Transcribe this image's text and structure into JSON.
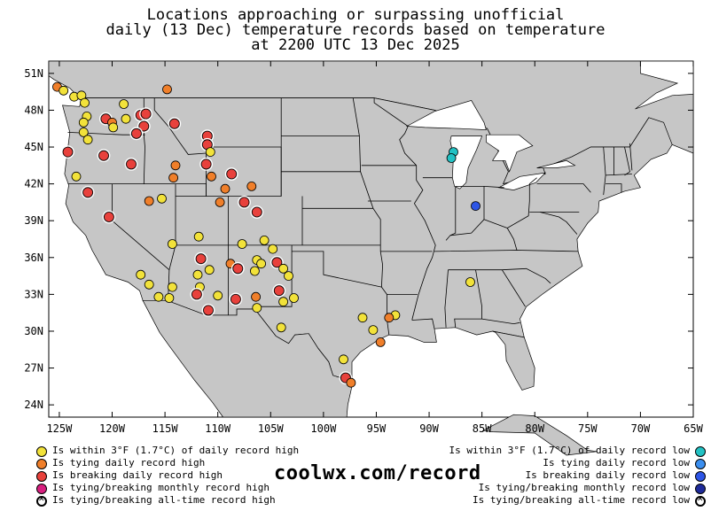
{
  "header": {
    "title_line1": "Locations approaching or surpassing unofficial",
    "title_line2": "daily (13 Dec) temperature records based on temperature",
    "title_line3": "at 2200 UTC 13 Dec 2025"
  },
  "map": {
    "lon_range": [
      -126,
      -65
    ],
    "lat_range": [
      23,
      52
    ],
    "lat_ticks": [
      "51N",
      "48N",
      "45N",
      "42N",
      "39N",
      "36N",
      "33N",
      "30N",
      "27N",
      "24N"
    ],
    "lon_ticks": [
      "125W",
      "120W",
      "115W",
      "110W",
      "105W",
      "100W",
      "95W",
      "90W",
      "85W",
      "80W",
      "75W",
      "70W",
      "65W"
    ],
    "colors": {
      "land": "#c6c6c6",
      "water": "#ffffff",
      "within_high": "#f2e23a",
      "tying_high": "#f07f2a",
      "breaking_high": "#e8413c",
      "monthly_high": "#d81f7f",
      "within_low": "#22c2c4",
      "tying_low": "#3b8ff0",
      "breaking_low": "#2d55e6"
    },
    "stations": [
      {
        "lon": -125.2,
        "lat": 49.9,
        "type": "tying_high"
      },
      {
        "lon": -124.6,
        "lat": 49.6,
        "type": "within_high"
      },
      {
        "lon": -123.6,
        "lat": 49.1,
        "type": "within_high"
      },
      {
        "lon": -122.9,
        "lat": 49.2,
        "type": "within_high"
      },
      {
        "lon": -114.8,
        "lat": 49.7,
        "type": "tying_high"
      },
      {
        "lon": -122.6,
        "lat": 48.6,
        "type": "within_high"
      },
      {
        "lon": -122.4,
        "lat": 47.5,
        "type": "within_high"
      },
      {
        "lon": -122.7,
        "lat": 47.0,
        "type": "within_high"
      },
      {
        "lon": -120.6,
        "lat": 47.3,
        "type": "breaking_high"
      },
      {
        "lon": -120.0,
        "lat": 47.0,
        "type": "tying_high"
      },
      {
        "lon": -119.9,
        "lat": 46.6,
        "type": "within_high"
      },
      {
        "lon": -118.9,
        "lat": 48.5,
        "type": "within_high"
      },
      {
        "lon": -118.7,
        "lat": 47.3,
        "type": "within_high"
      },
      {
        "lon": -117.3,
        "lat": 47.6,
        "type": "breaking_high"
      },
      {
        "lon": -116.8,
        "lat": 47.7,
        "type": "breaking_high"
      },
      {
        "lon": -117.0,
        "lat": 46.7,
        "type": "breaking_high"
      },
      {
        "lon": -117.7,
        "lat": 46.1,
        "type": "breaking_high"
      },
      {
        "lon": -114.1,
        "lat": 46.9,
        "type": "breaking_high"
      },
      {
        "lon": -122.7,
        "lat": 46.2,
        "type": "within_high"
      },
      {
        "lon": -122.3,
        "lat": 45.6,
        "type": "within_high"
      },
      {
        "lon": -111.0,
        "lat": 45.9,
        "type": "breaking_high"
      },
      {
        "lon": -111.0,
        "lat": 45.2,
        "type": "breaking_high"
      },
      {
        "lon": -124.2,
        "lat": 44.6,
        "type": "breaking_high"
      },
      {
        "lon": -120.8,
        "lat": 44.3,
        "type": "breaking_high"
      },
      {
        "lon": -118.2,
        "lat": 43.6,
        "type": "breaking_high"
      },
      {
        "lon": -110.7,
        "lat": 44.6,
        "type": "within_high"
      },
      {
        "lon": -111.1,
        "lat": 43.6,
        "type": "breaking_high"
      },
      {
        "lon": -114.0,
        "lat": 43.5,
        "type": "tying_high"
      },
      {
        "lon": -114.2,
        "lat": 42.5,
        "type": "tying_high"
      },
      {
        "lon": -108.7,
        "lat": 42.8,
        "type": "breaking_high"
      },
      {
        "lon": -110.6,
        "lat": 42.6,
        "type": "tying_high"
      },
      {
        "lon": -109.3,
        "lat": 41.6,
        "type": "tying_high"
      },
      {
        "lon": -106.8,
        "lat": 41.8,
        "type": "tying_high"
      },
      {
        "lon": -123.4,
        "lat": 42.6,
        "type": "within_high"
      },
      {
        "lon": -122.3,
        "lat": 41.3,
        "type": "breaking_high"
      },
      {
        "lon": -116.5,
        "lat": 40.6,
        "type": "tying_high"
      },
      {
        "lon": -115.3,
        "lat": 40.8,
        "type": "within_high"
      },
      {
        "lon": -109.8,
        "lat": 40.5,
        "type": "tying_high"
      },
      {
        "lon": -107.5,
        "lat": 40.5,
        "type": "breaking_high"
      },
      {
        "lon": -106.3,
        "lat": 39.7,
        "type": "breaking_high"
      },
      {
        "lon": -120.3,
        "lat": 39.3,
        "type": "breaking_high"
      },
      {
        "lon": -111.8,
        "lat": 37.7,
        "type": "within_high"
      },
      {
        "lon": -114.3,
        "lat": 37.1,
        "type": "within_high"
      },
      {
        "lon": -107.7,
        "lat": 37.1,
        "type": "within_high"
      },
      {
        "lon": -105.6,
        "lat": 37.4,
        "type": "within_high"
      },
      {
        "lon": -111.6,
        "lat": 35.9,
        "type": "breaking_high"
      },
      {
        "lon": -110.8,
        "lat": 35.0,
        "type": "within_high"
      },
      {
        "lon": -108.8,
        "lat": 35.5,
        "type": "tying_high"
      },
      {
        "lon": -108.1,
        "lat": 35.1,
        "type": "breaking_high"
      },
      {
        "lon": -106.3,
        "lat": 35.8,
        "type": "within_high"
      },
      {
        "lon": -105.9,
        "lat": 35.5,
        "type": "within_high"
      },
      {
        "lon": -104.4,
        "lat": 35.6,
        "type": "breaking_high"
      },
      {
        "lon": -104.8,
        "lat": 36.7,
        "type": "within_high"
      },
      {
        "lon": -106.5,
        "lat": 34.9,
        "type": "within_high"
      },
      {
        "lon": -103.8,
        "lat": 35.1,
        "type": "within_high"
      },
      {
        "lon": -103.3,
        "lat": 34.5,
        "type": "within_high"
      },
      {
        "lon": -111.9,
        "lat": 34.6,
        "type": "within_high"
      },
      {
        "lon": -111.7,
        "lat": 33.6,
        "type": "within_high"
      },
      {
        "lon": -112.0,
        "lat": 33.0,
        "type": "breaking_high"
      },
      {
        "lon": -117.3,
        "lat": 34.6,
        "type": "within_high"
      },
      {
        "lon": -116.5,
        "lat": 33.8,
        "type": "within_high"
      },
      {
        "lon": -115.6,
        "lat": 32.8,
        "type": "within_high"
      },
      {
        "lon": -114.6,
        "lat": 32.7,
        "type": "within_high"
      },
      {
        "lon": -114.3,
        "lat": 33.6,
        "type": "within_high"
      },
      {
        "lon": -110.0,
        "lat": 32.9,
        "type": "within_high"
      },
      {
        "lon": -108.3,
        "lat": 32.6,
        "type": "breaking_high"
      },
      {
        "lon": -110.9,
        "lat": 31.7,
        "type": "breaking_high"
      },
      {
        "lon": -106.4,
        "lat": 32.8,
        "type": "tying_high"
      },
      {
        "lon": -106.3,
        "lat": 31.9,
        "type": "within_high"
      },
      {
        "lon": -104.2,
        "lat": 33.3,
        "type": "breaking_high"
      },
      {
        "lon": -103.8,
        "lat": 32.4,
        "type": "within_high"
      },
      {
        "lon": -102.8,
        "lat": 32.7,
        "type": "within_high"
      },
      {
        "lon": -104.0,
        "lat": 30.3,
        "type": "within_high"
      },
      {
        "lon": -96.3,
        "lat": 31.1,
        "type": "within_high"
      },
      {
        "lon": -93.2,
        "lat": 31.3,
        "type": "within_high"
      },
      {
        "lon": -93.8,
        "lat": 31.1,
        "type": "tying_high"
      },
      {
        "lon": -95.3,
        "lat": 30.1,
        "type": "within_high"
      },
      {
        "lon": -94.6,
        "lat": 29.1,
        "type": "tying_high"
      },
      {
        "lon": -98.1,
        "lat": 27.7,
        "type": "within_high"
      },
      {
        "lon": -97.9,
        "lat": 26.2,
        "type": "breaking_high"
      },
      {
        "lon": -97.4,
        "lat": 25.8,
        "type": "tying_high"
      },
      {
        "lon": -86.1,
        "lat": 34.0,
        "type": "within_high"
      },
      {
        "lon": -87.7,
        "lat": 44.6,
        "type": "within_low"
      },
      {
        "lon": -87.9,
        "lat": 44.1,
        "type": "within_low"
      },
      {
        "lon": -85.6,
        "lat": 40.2,
        "type": "breaking_low"
      }
    ]
  },
  "legend": {
    "left": [
      {
        "label": "Is within 3°F (1.7°C) of daily record high",
        "color": "#f2e23a"
      },
      {
        "label": "Is tying daily record high",
        "color": "#f07f2a"
      },
      {
        "label": "Is breaking daily record high",
        "color": "#e8413c"
      },
      {
        "label": "Is tying/breaking monthly record high",
        "color": "#d81f7f"
      },
      {
        "label": "Is tying/breaking all-time record high",
        "color": "#ffffff"
      }
    ],
    "right": [
      {
        "label": "Is within 3°F (1.7°C) of daily record low",
        "color": "#22c2c4"
      },
      {
        "label": "Is tying daily record low",
        "color": "#3b8ff0"
      },
      {
        "label": "Is breaking daily record low",
        "color": "#2d55e6"
      },
      {
        "label": "Is tying/breaking monthly record low",
        "color": "#1e2a9a"
      },
      {
        "label": "Is tying/breaking all-time record low",
        "color": "#ffffff"
      }
    ]
  },
  "brand": "coolwx.com/record"
}
